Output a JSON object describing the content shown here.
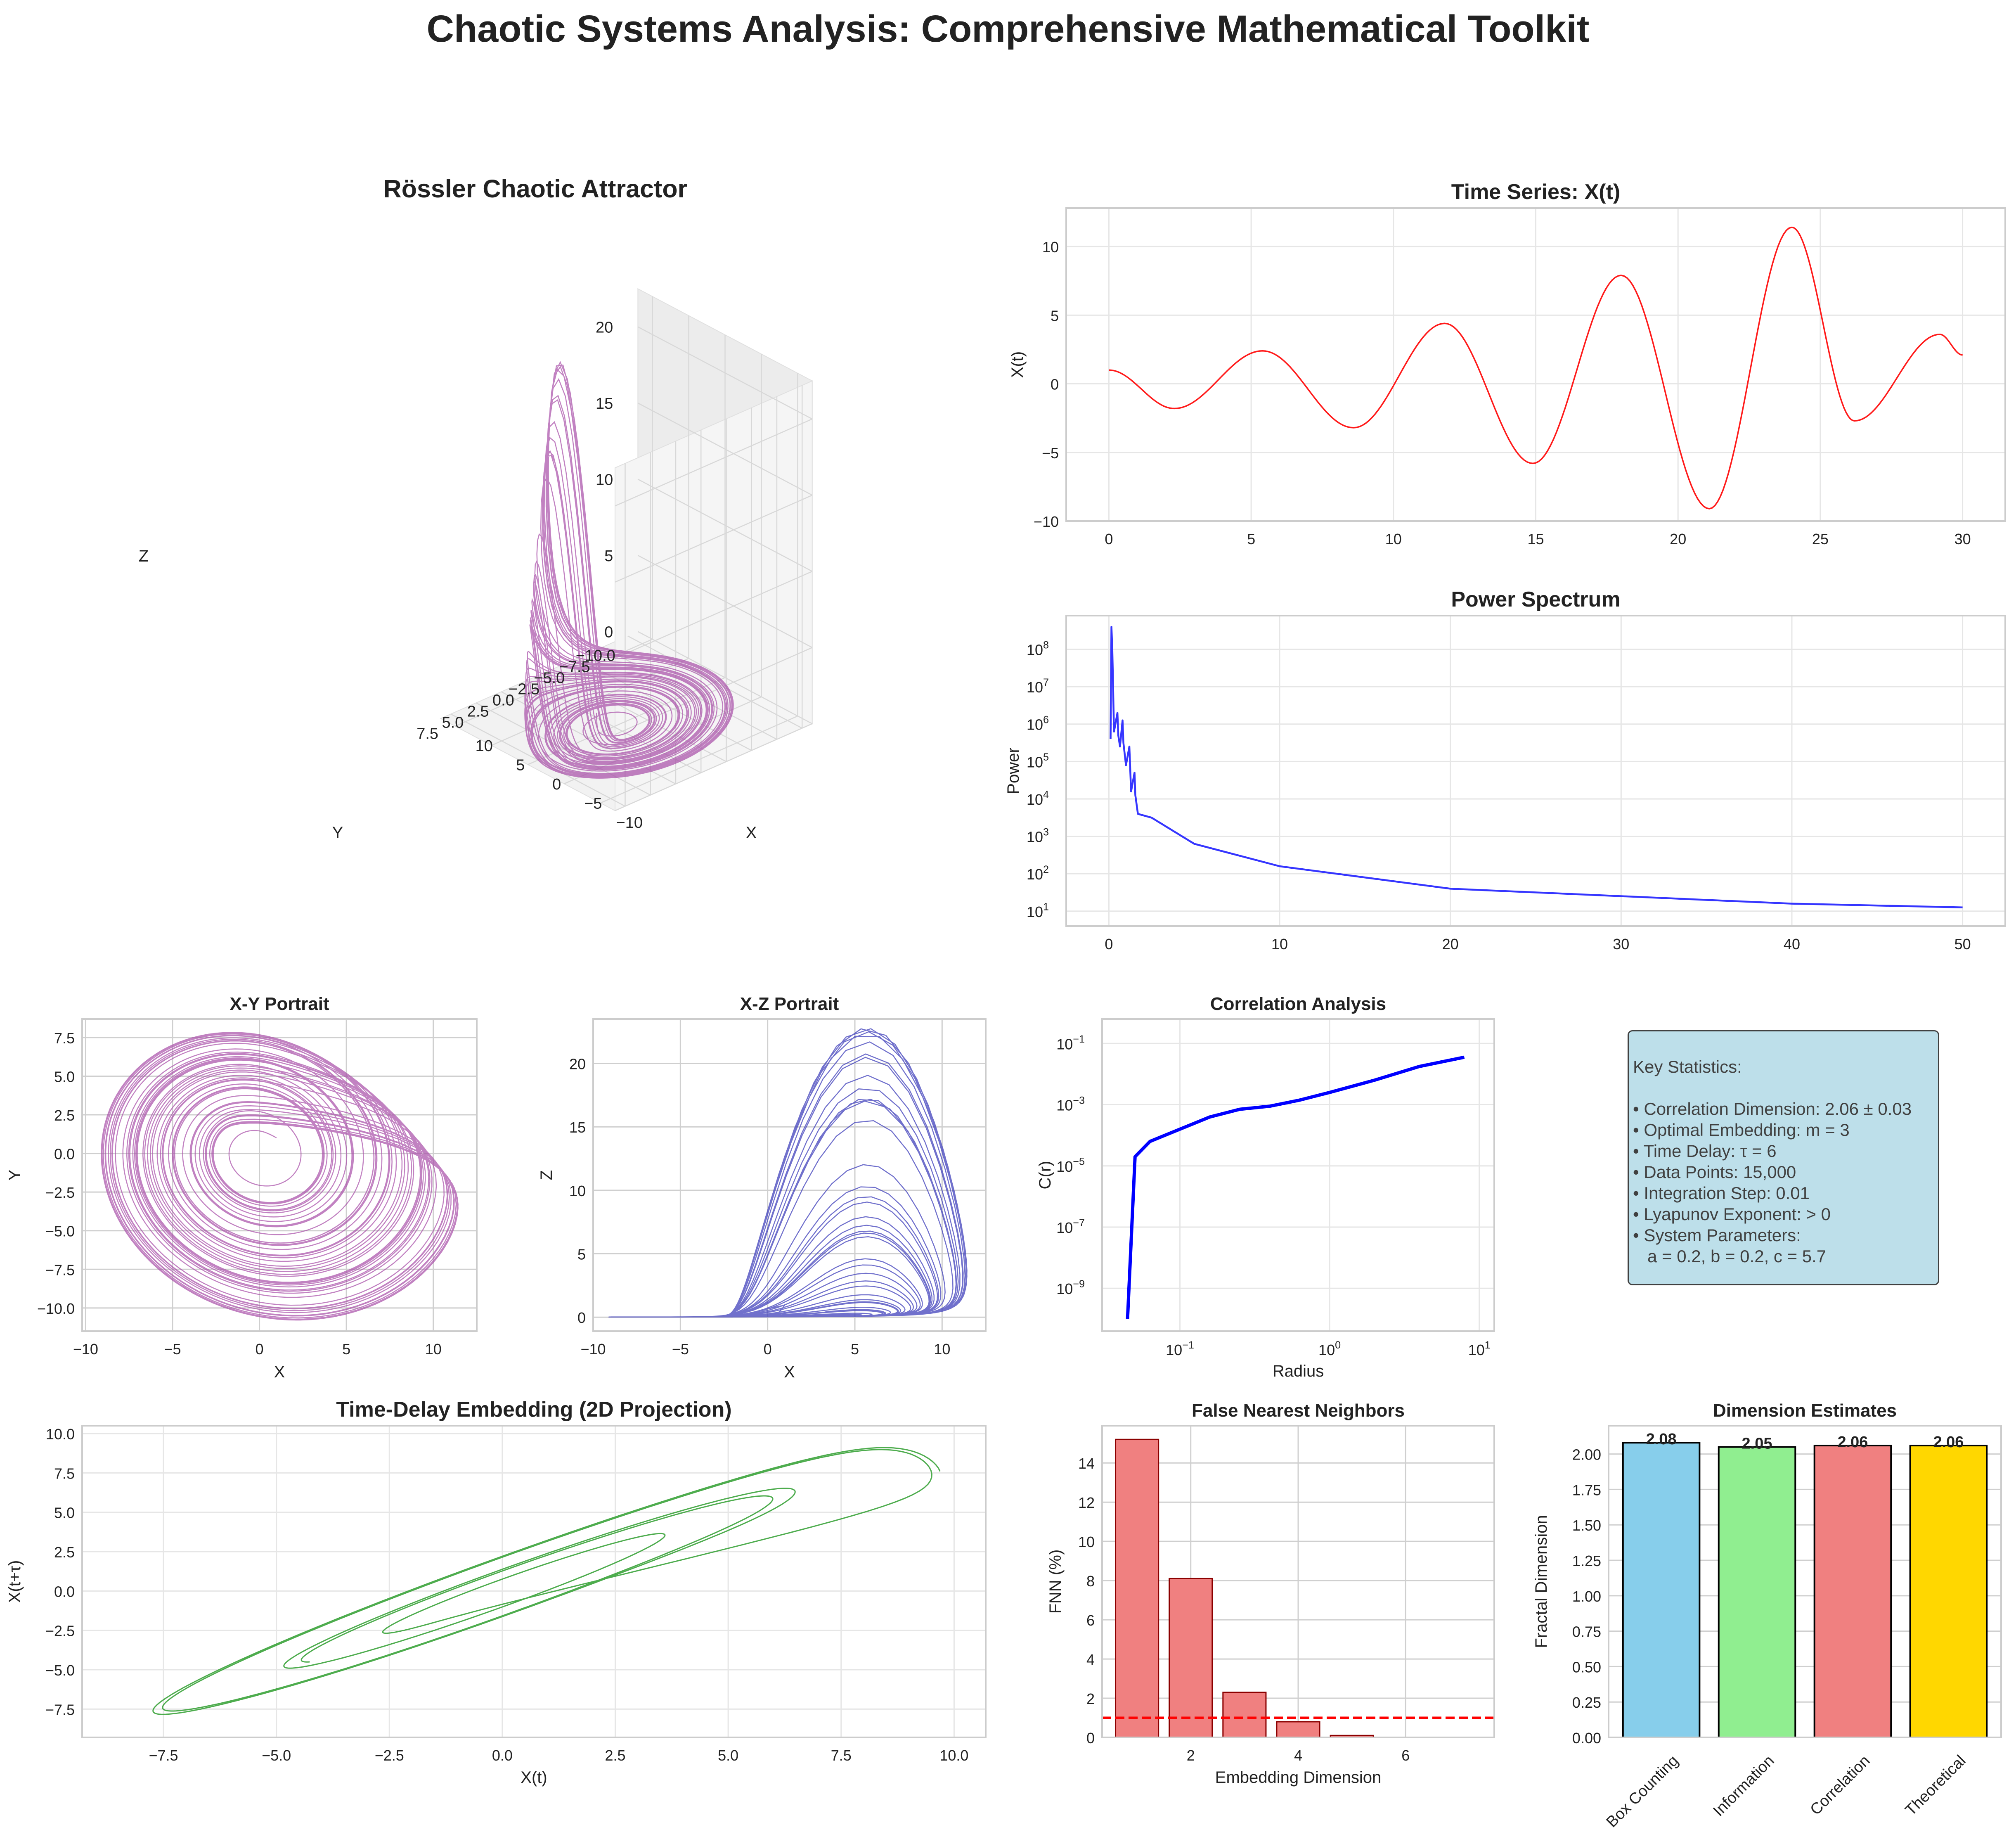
{
  "suptitle": "Chaotic Systems Analysis: Comprehensive Mathematical Toolkit",
  "colors": {
    "attractor": "#a64ca6",
    "timeseries": "#ff1a1a",
    "spectrum": "#1f1fff",
    "xz": "#4040bb",
    "correlation": "#0000ff",
    "embedding": "#3aa33a",
    "fnn_bar": "#f08080",
    "threshold": "#ff0000",
    "grid": "#e6e6e6",
    "spine": "#cccccc"
  },
  "stats": {
    "heading": "Key Statistics:",
    "lines": [
      "• Correlation Dimension: 2.06 ± 0.03",
      "• Optimal Embedding: m = 3",
      "• Time Delay: τ = 6",
      "• Data Points: 15,000",
      "• Integration Step: 0.01",
      "• Lyapunov Exponent: > 0",
      "• System Parameters:",
      "   a = 0.2, b = 0.2, c = 5.7"
    ]
  },
  "chart_data": [
    {
      "id": "attractor3d",
      "type": "line",
      "title": "Rössler Chaotic Attractor",
      "xlabel": "X",
      "ylabel": "Y",
      "zlabel": "Z",
      "xticks": [
        "−10",
        "−5",
        "0",
        "5",
        "10"
      ],
      "yticks": [
        "−10.0",
        "−7.5",
        "−5.0",
        "−2.5",
        "0.0",
        "2.5",
        "5.0",
        "7.5"
      ],
      "zticks": [
        "0",
        "5",
        "10",
        "15",
        "20"
      ],
      "params": {
        "a": 0.2,
        "b": 0.2,
        "c": 5.7
      }
    },
    {
      "id": "timeseries",
      "type": "line",
      "title": "Time Series: X(t)",
      "xlabel": "",
      "ylabel": "X(t)",
      "xlim": [
        -1.5,
        31.5
      ],
      "ylim": [
        -10,
        12.8
      ],
      "xticks": [
        0,
        5,
        10,
        15,
        20,
        25,
        30
      ],
      "yticks": [
        -10,
        -5,
        0,
        5,
        10
      ],
      "points": [
        [
          0,
          1
        ],
        [
          2.3,
          -1.8
        ],
        [
          5.4,
          2.4
        ],
        [
          8.6,
          -3.2
        ],
        [
          11.8,
          4.4
        ],
        [
          14.9,
          -5.8
        ],
        [
          18.0,
          7.9
        ],
        [
          21.1,
          -9.1
        ],
        [
          24.0,
          11.4
        ],
        [
          26.2,
          -2.7
        ],
        [
          29.2,
          3.6
        ],
        [
          30,
          2.1
        ]
      ]
    },
    {
      "id": "spectrum",
      "type": "line",
      "title": "Power Spectrum",
      "xlabel": "",
      "ylabel": "Power",
      "xlim": [
        -2.5,
        52.5
      ],
      "ylim_log10": [
        0.6,
        8.9
      ],
      "xticks": [
        0,
        10,
        20,
        30,
        40,
        50
      ],
      "yticks_log10": [
        1,
        2,
        3,
        4,
        5,
        6,
        7,
        8
      ],
      "points": [
        [
          0.1,
          5.6
        ],
        [
          0.15,
          8.6
        ],
        [
          0.3,
          5.8
        ],
        [
          0.5,
          6.3
        ],
        [
          0.65,
          5.4
        ],
        [
          0.8,
          6.1
        ],
        [
          1.0,
          4.9
        ],
        [
          1.2,
          5.4
        ],
        [
          1.3,
          4.2
        ],
        [
          1.5,
          4.7
        ],
        [
          1.7,
          3.6
        ],
        [
          2.5,
          3.5
        ],
        [
          5,
          2.8
        ],
        [
          10,
          2.2
        ],
        [
          20,
          1.6
        ],
        [
          30,
          1.4
        ],
        [
          40,
          1.2
        ],
        [
          50,
          1.1
        ]
      ]
    },
    {
      "id": "xy",
      "type": "line",
      "title": "X-Y Portrait",
      "xlabel": "X",
      "ylabel": "Y",
      "xlim": [
        -10.2,
        12.5
      ],
      "ylim": [
        -11.5,
        8.7
      ],
      "xticks": [
        -10,
        -5,
        0,
        5,
        10
      ],
      "yticks": [
        -10.0,
        -7.5,
        -5.0,
        -2.5,
        0.0,
        2.5,
        5.0,
        7.5
      ]
    },
    {
      "id": "xz",
      "type": "line",
      "title": "X-Z Portrait",
      "xlabel": "X",
      "ylabel": "Z",
      "xlim": [
        -10,
        12.5
      ],
      "ylim": [
        -1.1,
        23.5
      ],
      "xticks": [
        -10,
        -5,
        0,
        5,
        10
      ],
      "yticks": [
        0,
        5,
        10,
        15,
        20
      ]
    },
    {
      "id": "correlation",
      "type": "line",
      "title": "Correlation Analysis",
      "xlabel": "Radius",
      "ylabel": "C(r)",
      "xlim_log10": [
        -1.52,
        1.1
      ],
      "ylim_log10": [
        -10.4,
        -0.2
      ],
      "xticks_log10": [
        -1,
        0,
        1
      ],
      "yticks_log10": [
        -9,
        -7,
        -5,
        -3,
        -1
      ],
      "points": [
        [
          -1.35,
          -10.0
        ],
        [
          -1.3,
          -4.7
        ],
        [
          -1.2,
          -4.2
        ],
        [
          -1.0,
          -3.8
        ],
        [
          -0.8,
          -3.4
        ],
        [
          -0.6,
          -3.15
        ],
        [
          -0.4,
          -3.05
        ],
        [
          -0.2,
          -2.85
        ],
        [
          0,
          -2.6
        ],
        [
          0.3,
          -2.2
        ],
        [
          0.6,
          -1.75
        ],
        [
          0.9,
          -1.45
        ]
      ]
    },
    {
      "id": "embedding",
      "type": "line",
      "title": "Time-Delay Embedding (2D Projection)",
      "xlabel": "X(t)",
      "ylabel": "X(t+τ)",
      "xlim": [
        -9.3,
        10.7
      ],
      "ylim": [
        -9.3,
        10.5
      ],
      "xticks": [
        -7.5,
        -5.0,
        -2.5,
        0.0,
        2.5,
        5.0,
        7.5,
        10.0
      ],
      "yticks": [
        -7.5,
        -5.0,
        -2.5,
        0.0,
        2.5,
        5.0,
        7.5,
        10.0
      ]
    },
    {
      "id": "fnn",
      "type": "bar",
      "title": "False Nearest Neighbors",
      "xlabel": "Embedding Dimension",
      "ylabel": "FNN (%)",
      "xlim": [
        0.35,
        7.65
      ],
      "ylim": [
        0,
        15.9
      ],
      "xticks": [
        2,
        4,
        6
      ],
      "yticks": [
        0,
        2,
        4,
        6,
        8,
        10,
        12,
        14
      ],
      "categories": [
        1,
        2,
        3,
        4,
        5
      ],
      "values": [
        15.2,
        8.1,
        2.3,
        0.8,
        0.1
      ],
      "threshold": 1.0
    },
    {
      "id": "dimensions",
      "type": "bar",
      "title": "Dimension Estimates",
      "xlabel": "",
      "ylabel": "Fractal Dimension",
      "ylim": [
        0,
        2.2
      ],
      "yticks": [
        "0.00",
        "0.25",
        "0.50",
        "0.75",
        "1.00",
        "1.25",
        "1.50",
        "1.75",
        "2.00"
      ],
      "categories": [
        "Box Counting",
        "Information",
        "Correlation",
        "Theoretical"
      ],
      "values": [
        2.08,
        2.05,
        2.06,
        2.06
      ],
      "value_labels": [
        "2.08",
        "2.05",
        "2.06",
        "2.06"
      ],
      "bar_colors": [
        "#87ceeb",
        "#90ee90",
        "#f08080",
        "#ffd700"
      ]
    }
  ]
}
